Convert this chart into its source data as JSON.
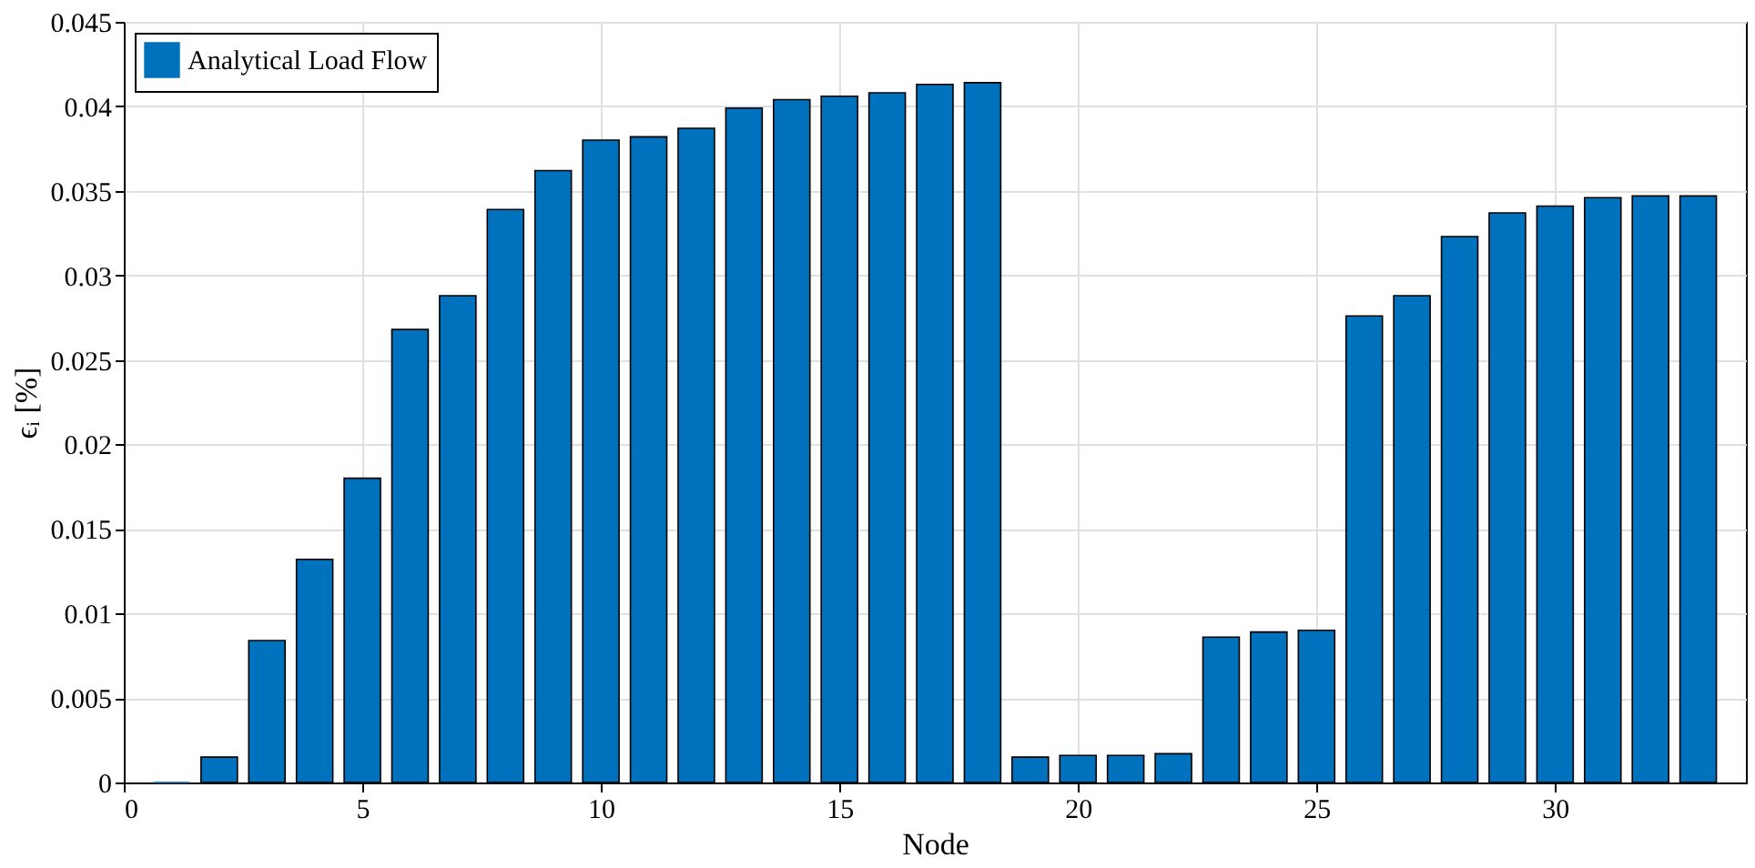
{
  "chart_data": {
    "type": "bar",
    "xlabel": "Node",
    "ylabel": "ϵᵢ [%]",
    "x": [
      1,
      2,
      3,
      4,
      5,
      6,
      7,
      8,
      9,
      10,
      11,
      12,
      13,
      14,
      15,
      16,
      17,
      18,
      19,
      20,
      21,
      22,
      23,
      24,
      25,
      26,
      27,
      28,
      29,
      30,
      31,
      32,
      33
    ],
    "series": [
      {
        "name": "Analytical Load Flow",
        "color": "#0072bd",
        "values": [
          0,
          0.0015,
          0.0084,
          0.0132,
          0.018,
          0.0268,
          0.0288,
          0.0339,
          0.0362,
          0.038,
          0.0382,
          0.0387,
          0.0399,
          0.0404,
          0.0406,
          0.0408,
          0.0413,
          0.0414,
          0.0015,
          0.0016,
          0.0016,
          0.0017,
          0.0086,
          0.0089,
          0.009,
          0.0276,
          0.0288,
          0.0323,
          0.0337,
          0.0341,
          0.0346,
          0.0347,
          0.0347
        ]
      }
    ],
    "xlim": [
      0,
      34
    ],
    "xticks": [
      0,
      5,
      10,
      15,
      20,
      25,
      30
    ],
    "ylim": [
      0,
      0.045
    ],
    "yticks": [
      0,
      0.005,
      0.01,
      0.015,
      0.02,
      0.025,
      0.03,
      0.035,
      0.04,
      0.045
    ],
    "grid": true,
    "legend": "top left"
  }
}
